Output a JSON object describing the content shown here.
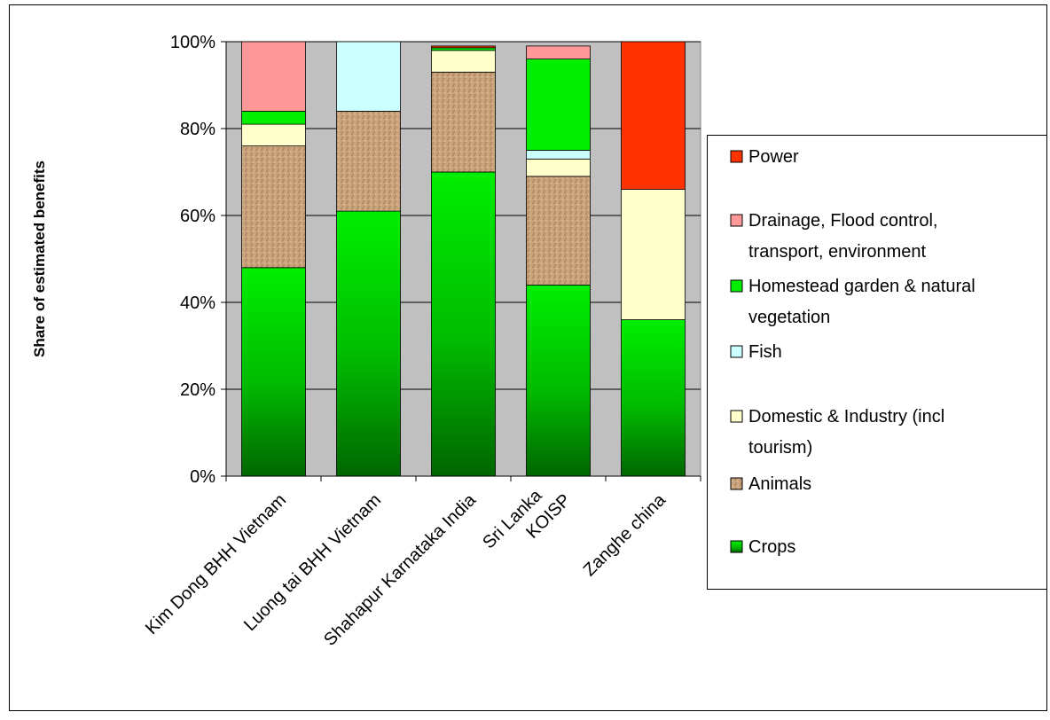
{
  "chart_data": {
    "type": "bar",
    "stacked": true,
    "percent": true,
    "title": "",
    "xlabel": "",
    "ylabel": "Share of estimated benefits",
    "ylim": [
      0,
      100
    ],
    "yticks": [
      "0%",
      "20%",
      "40%",
      "60%",
      "80%",
      "100%"
    ],
    "categories": [
      "Kim Dong BHH Vietnam",
      "Luong tai BHH Vietnam",
      "Shahapur Karnataka India",
      "KOISP",
      "Zanghe china"
    ],
    "extra_labels": [
      "Sri Lanka"
    ],
    "grid": true,
    "legend_position": "right",
    "series": [
      {
        "name": "Crops",
        "color": "#00cc00",
        "values": [
          48,
          61,
          70,
          44,
          36
        ]
      },
      {
        "name": "Animals",
        "color": "#c49a6c",
        "values": [
          28,
          23,
          23,
          25,
          0
        ]
      },
      {
        "name": "Domestic & Industry (incl tourism)",
        "color": "#ffffcc",
        "values": [
          5,
          0,
          5,
          4,
          30
        ]
      },
      {
        "name": "Fish",
        "color": "#ccffff",
        "values": [
          0,
          16,
          0,
          2,
          0
        ]
      },
      {
        "name": "Homestead garden & natural vegetation",
        "color": "#00ee00",
        "values": [
          3,
          0,
          0.6,
          21,
          0
        ]
      },
      {
        "name": "Drainage, Flood control, transport, environment",
        "color": "#ff9999",
        "values": [
          16,
          0,
          0,
          3,
          0
        ]
      },
      {
        "name": "Power",
        "color": "#ff3300",
        "values": [
          0,
          0,
          0.4,
          0,
          34
        ]
      }
    ],
    "legend_lines": [
      [
        "Power"
      ],
      [
        "Drainage, Flood control,",
        "transport, environment"
      ],
      [
        "Homestead garden & natural",
        "vegetation"
      ],
      [
        "Fish"
      ],
      [
        "Domestic & Industry (incl",
        "tourism)"
      ],
      [
        "Animals"
      ],
      [
        "Crops"
      ]
    ]
  }
}
